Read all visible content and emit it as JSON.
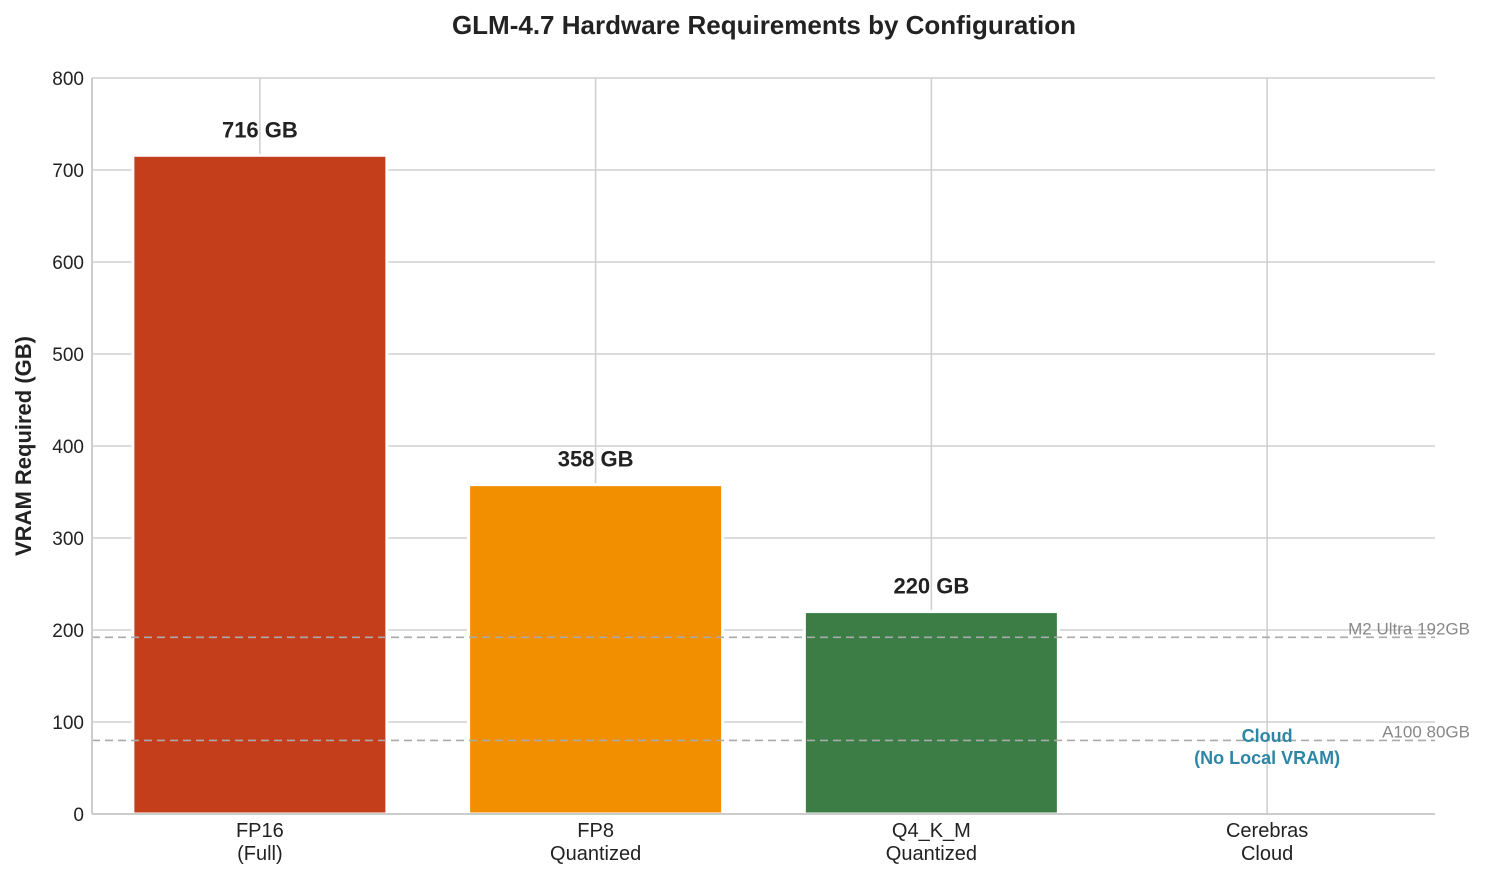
{
  "chart_data": {
    "type": "bar",
    "title": "GLM-4.7 Hardware Requirements by Configuration",
    "xlabel": "",
    "ylabel": "VRAM Required (GB)",
    "ylim": [
      0,
      800
    ],
    "yticks": [
      0,
      100,
      200,
      300,
      400,
      500,
      600,
      700,
      800
    ],
    "grid": true,
    "categories": [
      "FP16\n(Full)",
      "FP8\nQuantized",
      "Q4_K_M\nQuantized",
      "Cerebras\nCloud"
    ],
    "values": [
      716,
      358,
      220,
      0
    ],
    "colors": [
      "#c43e1c",
      "#f18f01",
      "#3b7d45",
      null
    ],
    "data_labels": [
      "716 GB",
      "358 GB",
      "220 GB",
      ""
    ],
    "reference_lines": [
      {
        "label": "M2 Ultra 192GB",
        "value": 192,
        "style": "dashed",
        "color": "#aaaaaa"
      },
      {
        "label": "A100 80GB",
        "value": 80,
        "style": "dashed",
        "color": "#aaaaaa"
      }
    ],
    "annotations": [
      {
        "text": "Cloud\n(No Local VRAM)",
        "x": "Cerebras\nCloud",
        "y": 55,
        "color": "#2e86a6"
      }
    ]
  }
}
